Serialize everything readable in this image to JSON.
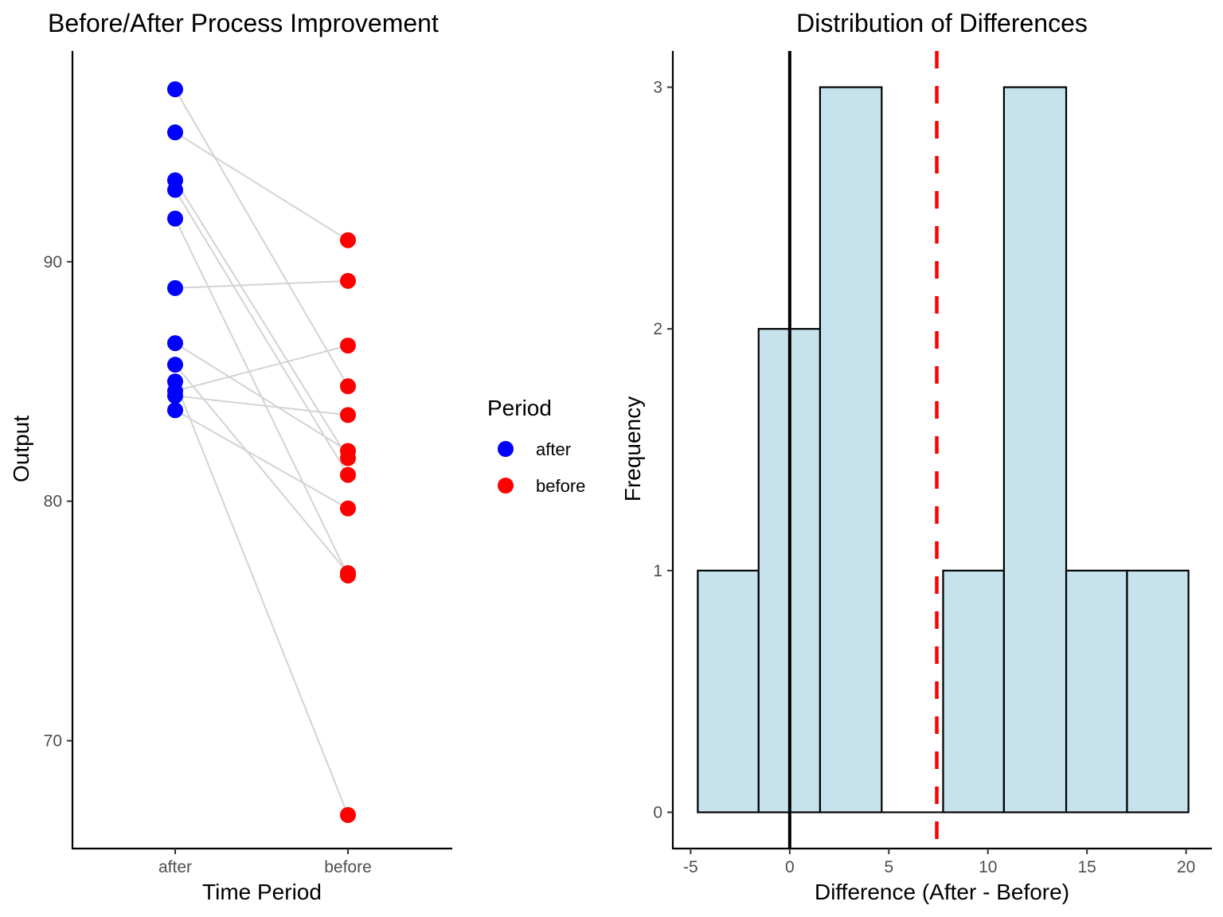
{
  "chart_data": [
    {
      "type": "scatter",
      "subtype": "paired-dot-line",
      "title": "Before/After Process Improvement",
      "xlabel": "Time Period",
      "ylabel": "Output",
      "categories": [
        "after",
        "before"
      ],
      "ylim": [
        65.5,
        98.8
      ],
      "yticks": [
        70,
        80,
        90
      ],
      "grid": false,
      "legend": {
        "title": "Period",
        "position": "right",
        "entries": [
          {
            "label": "after",
            "color": "#0000ff"
          },
          {
            "label": "before",
            "color": "#ff0000"
          }
        ]
      },
      "line_color": "#d3d3d3",
      "pairs": [
        {
          "after": 97.2,
          "before": 84.8
        },
        {
          "after": 95.4,
          "before": 90.9
        },
        {
          "after": 93.4,
          "before": 81.8
        },
        {
          "after": 93.0,
          "before": 81.1
        },
        {
          "after": 91.8,
          "before": 76.9
        },
        {
          "after": 88.9,
          "before": 89.2
        },
        {
          "after": 86.6,
          "before": 82.1
        },
        {
          "after": 85.7,
          "before": 77.0
        },
        {
          "after": 85.0,
          "before": 66.9
        },
        {
          "after": 84.6,
          "before": 86.5
        },
        {
          "after": 84.4,
          "before": 83.6
        },
        {
          "after": 83.8,
          "before": 79.7
        }
      ]
    },
    {
      "type": "bar",
      "subtype": "histogram",
      "title": "Distribution of Differences",
      "xlabel": "Difference (After - Before)",
      "ylabel": "Frequency",
      "xlim": [
        -5.9,
        21.3
      ],
      "ylim": [
        -0.15,
        3.15
      ],
      "xticks": [
        -5,
        0,
        5,
        10,
        15,
        20
      ],
      "xtick_labels": [
        "-5",
        "0",
        "5",
        "10",
        "15",
        "20"
      ],
      "yticks": [
        0,
        1,
        2,
        3
      ],
      "grid": false,
      "fill_color": "#c6e3ed",
      "border_color": "#000000",
      "bins": [
        {
          "start": -4.64,
          "end": -1.57,
          "count": 1
        },
        {
          "start": -1.57,
          "end": 1.53,
          "count": 2
        },
        {
          "start": 1.53,
          "end": 4.64,
          "count": 3
        },
        {
          "start": 4.64,
          "end": 7.74,
          "count": 0
        },
        {
          "start": 7.74,
          "end": 10.81,
          "count": 1
        },
        {
          "start": 10.81,
          "end": 13.95,
          "count": 3
        },
        {
          "start": 13.95,
          "end": 17.02,
          "count": 1
        },
        {
          "start": 17.02,
          "end": 20.12,
          "count": 1
        }
      ],
      "reference_lines": [
        {
          "name": "zero-line",
          "x": 0,
          "color": "#000000",
          "style": "solid"
        },
        {
          "name": "mean-difference-line",
          "x": 7.42,
          "color": "#ff0000",
          "style": "dashed"
        }
      ]
    }
  ]
}
